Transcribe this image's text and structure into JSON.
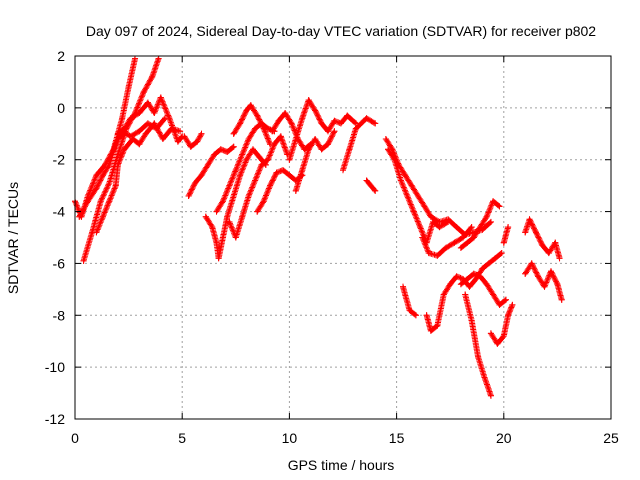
{
  "chart_data": {
    "type": "scatter",
    "title": "Day 097 of 2024, Sidereal Day-to-day VTEC variation (SDTVAR) for receiver p802",
    "xlabel": "GPS time / hours",
    "ylabel": "SDTVAR / TECUs",
    "xlim": [
      0,
      25
    ],
    "ylim": [
      -12,
      2
    ],
    "xticks": [
      0,
      5,
      10,
      15,
      20,
      25
    ],
    "yticks": [
      -12,
      -10,
      -8,
      -6,
      -4,
      -2,
      0,
      2
    ],
    "grid": true,
    "marker": "+",
    "series": [
      {
        "name": "SDTVAR",
        "color": "#ff0000",
        "tracks": [
          [
            [
              0.0,
              -3.6
            ],
            [
              0.3,
              -4.2
            ],
            [
              0.6,
              -3.4
            ],
            [
              1.0,
              -2.6
            ],
            [
              1.4,
              -2.2
            ],
            [
              1.8,
              -1.6
            ],
            [
              2.2,
              -0.4
            ],
            [
              2.5,
              0.8
            ],
            [
              2.8,
              1.9
            ]
          ],
          [
            [
              0.4,
              -5.9
            ],
            [
              0.8,
              -4.8
            ],
            [
              1.2,
              -3.6
            ],
            [
              1.6,
              -2.9
            ],
            [
              2.0,
              -1.8
            ],
            [
              2.4,
              -0.8
            ],
            [
              2.8,
              -0.2
            ],
            [
              3.2,
              0.6
            ],
            [
              3.6,
              1.2
            ],
            [
              3.9,
              1.9
            ]
          ],
          [
            [
              0.2,
              -4.2
            ],
            [
              0.6,
              -3.6
            ],
            [
              1.0,
              -3.1
            ],
            [
              1.3,
              -2.6
            ],
            [
              1.6,
              -2.2
            ],
            [
              1.9,
              -1.4
            ],
            [
              2.2,
              -0.9
            ],
            [
              2.6,
              -1.1
            ],
            [
              3.0,
              -0.9
            ],
            [
              3.4,
              -0.6
            ],
            [
              3.8,
              -0.8
            ],
            [
              4.2,
              -0.4
            ]
          ],
          [
            [
              1.0,
              -4.8
            ],
            [
              1.3,
              -4.2
            ],
            [
              1.6,
              -3.6
            ],
            [
              1.9,
              -3.0
            ],
            [
              2.0,
              -2.2
            ],
            [
              2.3,
              -1.6
            ],
            [
              2.7,
              -1.2
            ],
            [
              3.0,
              -1.4
            ],
            [
              3.3,
              -1.0
            ],
            [
              3.7,
              -0.6
            ],
            [
              4.1,
              -1.2
            ],
            [
              4.5,
              -0.8
            ],
            [
              4.9,
              -0.9
            ]
          ],
          [
            [
              2.0,
              -1.0
            ],
            [
              2.3,
              -0.8
            ],
            [
              2.6,
              -0.4
            ],
            [
              3.0,
              -0.2
            ],
            [
              3.4,
              0.2
            ],
            [
              3.7,
              -0.2
            ],
            [
              4.0,
              0.4
            ],
            [
              4.4,
              -0.4
            ],
            [
              4.8,
              -1.3
            ],
            [
              5.0,
              -1.1
            ]
          ],
          [
            [
              5.1,
              -1.1
            ],
            [
              5.4,
              -1.5
            ],
            [
              5.7,
              -1.3
            ],
            [
              5.9,
              -1.0
            ]
          ],
          [
            [
              5.3,
              -3.4
            ],
            [
              5.6,
              -2.9
            ],
            [
              5.9,
              -2.6
            ],
            [
              6.2,
              -2.2
            ],
            [
              6.5,
              -1.8
            ],
            [
              6.8,
              -1.6
            ],
            [
              7.1,
              -1.7
            ],
            [
              7.4,
              -1.5
            ]
          ],
          [
            [
              6.1,
              -4.2
            ],
            [
              6.4,
              -4.6
            ],
            [
              6.6,
              -5.2
            ],
            [
              6.7,
              -5.8
            ],
            [
              6.9,
              -5.0
            ],
            [
              7.1,
              -4.2
            ],
            [
              7.4,
              -3.4
            ],
            [
              7.7,
              -2.6
            ],
            [
              8.0,
              -2.0
            ],
            [
              8.3,
              -1.6
            ],
            [
              8.6,
              -1.9
            ],
            [
              8.9,
              -2.2
            ]
          ],
          [
            [
              6.6,
              -4.0
            ],
            [
              6.9,
              -3.6
            ],
            [
              7.2,
              -3.0
            ],
            [
              7.5,
              -2.4
            ],
            [
              7.8,
              -1.8
            ],
            [
              8.1,
              -1.2
            ],
            [
              8.4,
              -0.8
            ],
            [
              8.7,
              -0.6
            ],
            [
              9.0,
              -0.8
            ],
            [
              9.3,
              -0.9
            ]
          ],
          [
            [
              7.2,
              -4.4
            ],
            [
              7.5,
              -5.0
            ],
            [
              7.8,
              -4.2
            ],
            [
              8.1,
              -3.4
            ],
            [
              8.4,
              -2.8
            ],
            [
              8.7,
              -2.2
            ],
            [
              9.0,
              -2.0
            ],
            [
              9.3,
              -1.4
            ],
            [
              9.6,
              -1.1
            ],
            [
              9.9,
              -1.8
            ]
          ],
          [
            [
              7.4,
              -1.0
            ],
            [
              7.7,
              -0.6
            ],
            [
              8.0,
              -0.1
            ],
            [
              8.2,
              0.1
            ],
            [
              8.5,
              -0.3
            ],
            [
              8.8,
              -0.8
            ],
            [
              9.1,
              -1.4
            ]
          ],
          [
            [
              8.5,
              -4.0
            ],
            [
              8.8,
              -3.6
            ],
            [
              9.1,
              -3.0
            ],
            [
              9.4,
              -2.5
            ],
            [
              9.7,
              -2.4
            ],
            [
              10.0,
              -2.6
            ],
            [
              10.3,
              -2.8
            ],
            [
              10.6,
              -2.6
            ]
          ],
          [
            [
              9.2,
              -0.9
            ],
            [
              9.5,
              -0.5
            ],
            [
              9.8,
              -0.2
            ],
            [
              10.1,
              -0.6
            ],
            [
              10.4,
              -1.2
            ],
            [
              10.7,
              -1.6
            ],
            [
              11.0,
              -1.4
            ]
          ],
          [
            [
              10.0,
              -2.0
            ],
            [
              10.3,
              -1.2
            ],
            [
              10.6,
              -0.4
            ],
            [
              10.9,
              0.3
            ],
            [
              11.2,
              -0.1
            ],
            [
              11.5,
              -0.6
            ],
            [
              11.8,
              -0.9
            ],
            [
              12.1,
              -0.5
            ],
            [
              12.4,
              -0.6
            ],
            [
              12.7,
              -0.3
            ],
            [
              13.1,
              -0.6
            ]
          ],
          [
            [
              10.3,
              -3.2
            ],
            [
              10.6,
              -2.4
            ],
            [
              10.9,
              -1.6
            ],
            [
              11.2,
              -1.2
            ],
            [
              11.5,
              -1.6
            ],
            [
              11.8,
              -1.4
            ],
            [
              12.1,
              -0.9
            ]
          ],
          [
            [
              12.5,
              -2.4
            ],
            [
              12.8,
              -1.6
            ],
            [
              13.1,
              -0.8
            ],
            [
              13.6,
              -0.4
            ],
            [
              14.0,
              -0.6
            ]
          ],
          [
            [
              13.6,
              -2.8
            ],
            [
              14.0,
              -3.2
            ]
          ],
          [
            [
              14.5,
              -1.2
            ],
            [
              14.8,
              -1.6
            ],
            [
              15.1,
              -2.2
            ],
            [
              15.4,
              -2.6
            ],
            [
              15.7,
              -3.0
            ],
            [
              16.0,
              -3.4
            ],
            [
              16.3,
              -3.8
            ],
            [
              16.6,
              -4.2
            ],
            [
              17.0,
              -4.4
            ],
            [
              17.4,
              -4.3
            ],
            [
              17.8,
              -4.6
            ],
            [
              18.2,
              -4.9
            ],
            [
              18.6,
              -4.8
            ],
            [
              19.0,
              -4.7
            ],
            [
              19.4,
              -4.4
            ]
          ],
          [
            [
              14.6,
              -1.6
            ],
            [
              14.9,
              -2.0
            ],
            [
              15.2,
              -2.8
            ],
            [
              15.5,
              -3.4
            ],
            [
              15.8,
              -4.0
            ],
            [
              16.1,
              -4.6
            ],
            [
              16.4,
              -5.2
            ],
            [
              16.7,
              -4.4
            ],
            [
              17.0,
              -4.6
            ],
            [
              17.4,
              -4.4
            ]
          ],
          [
            [
              15.3,
              -6.9
            ],
            [
              15.6,
              -7.8
            ],
            [
              15.9,
              -8.0
            ]
          ],
          [
            [
              16.2,
              -5.0
            ],
            [
              16.5,
              -5.6
            ],
            [
              16.9,
              -5.7
            ],
            [
              17.3,
              -5.4
            ],
            [
              17.7,
              -5.2
            ],
            [
              18.1,
              -5.0
            ],
            [
              18.5,
              -4.6
            ]
          ],
          [
            [
              16.4,
              -8.0
            ],
            [
              16.6,
              -8.6
            ],
            [
              16.9,
              -8.4
            ],
            [
              17.2,
              -7.2
            ],
            [
              17.5,
              -6.8
            ],
            [
              17.8,
              -6.5
            ],
            [
              18.1,
              -6.6
            ],
            [
              18.4,
              -6.9
            ],
            [
              18.7,
              -6.6
            ],
            [
              19.0,
              -6.2
            ],
            [
              19.3,
              -6.0
            ],
            [
              19.6,
              -5.8
            ],
            [
              19.9,
              -5.6
            ]
          ],
          [
            [
              18.0,
              -6.8
            ],
            [
              18.3,
              -6.6
            ],
            [
              18.6,
              -6.4
            ],
            [
              18.9,
              -6.5
            ],
            [
              19.2,
              -6.8
            ],
            [
              19.5,
              -7.2
            ],
            [
              19.8,
              -7.6
            ],
            [
              20.1,
              -7.4
            ]
          ],
          [
            [
              18.0,
              -5.4
            ],
            [
              18.3,
              -5.2
            ],
            [
              18.6,
              -5.0
            ],
            [
              18.9,
              -4.6
            ],
            [
              19.2,
              -4.2
            ],
            [
              19.5,
              -3.6
            ],
            [
              19.8,
              -3.8
            ]
          ],
          [
            [
              18.2,
              -7.2
            ],
            [
              18.5,
              -8.2
            ],
            [
              18.8,
              -9.6
            ],
            [
              19.1,
              -10.4
            ],
            [
              19.4,
              -11.1
            ]
          ],
          [
            [
              19.4,
              -8.7
            ],
            [
              19.7,
              -9.1
            ],
            [
              20.0,
              -8.8
            ],
            [
              20.2,
              -8.0
            ],
            [
              20.4,
              -7.6
            ]
          ],
          [
            [
              20.0,
              -5.2
            ],
            [
              20.2,
              -4.6
            ]
          ],
          [
            [
              21.0,
              -4.8
            ],
            [
              21.2,
              -4.3
            ],
            [
              21.5,
              -4.8
            ],
            [
              21.8,
              -5.3
            ],
            [
              22.1,
              -5.6
            ],
            [
              22.4,
              -5.2
            ],
            [
              22.6,
              -5.8
            ]
          ],
          [
            [
              21.0,
              -6.4
            ],
            [
              21.3,
              -6.0
            ],
            [
              21.6,
              -6.5
            ],
            [
              21.9,
              -6.9
            ],
            [
              22.2,
              -6.3
            ],
            [
              22.5,
              -6.8
            ],
            [
              22.7,
              -7.4
            ]
          ]
        ]
      }
    ]
  }
}
